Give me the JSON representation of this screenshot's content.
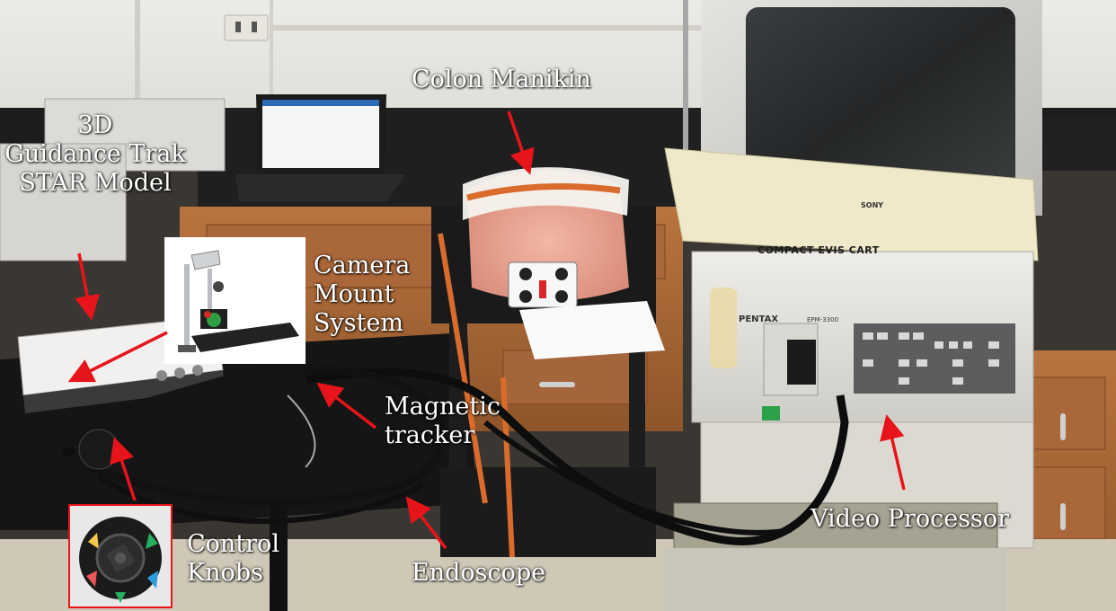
{
  "labels": {
    "colon_manikin": "Colon Manikin",
    "guidance_line1": "3D",
    "guidance_line2": "Guidance Trak",
    "guidance_line3": "STAR Model",
    "camera_line1": "Camera",
    "camera_line2": "Mount",
    "camera_line3": "System",
    "magnetic_line1": "Magnetic",
    "magnetic_line2": "tracker",
    "endoscope": "Endoscope",
    "video_processor": "Video Processor",
    "control_line1": "Control",
    "control_line2": "Knobs"
  },
  "equipment_text": {
    "cart": "COMPACT EVIS CART",
    "brand": "PENTAX",
    "model": "EPM-3300",
    "monitor_brand": "SONY"
  },
  "colors": {
    "arrow": "#e8141b",
    "label_text": "#ffffff",
    "inset_border": "#e8141b"
  }
}
